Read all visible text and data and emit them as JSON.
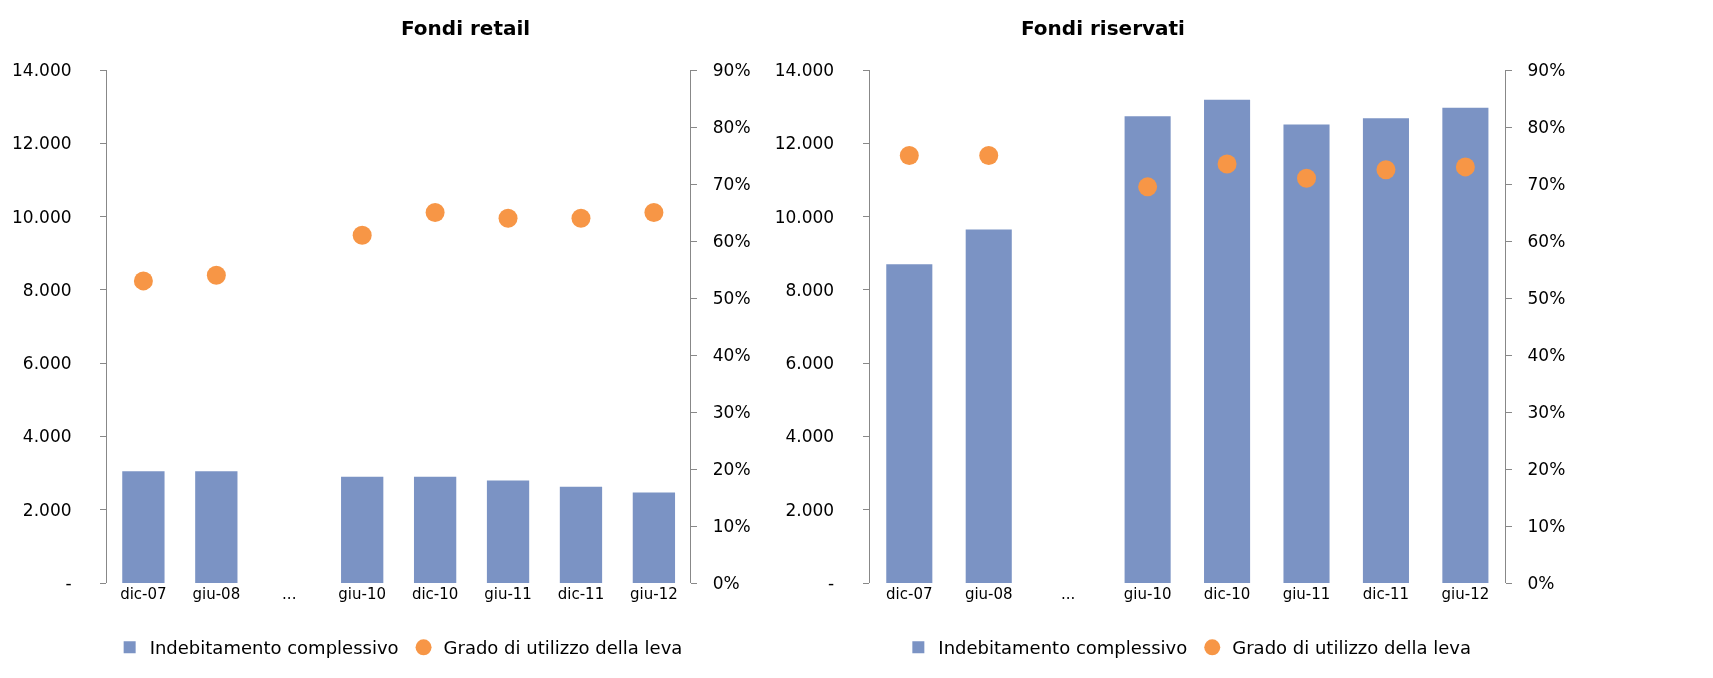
{
  "chart_data": [
    {
      "type": "bar",
      "title": "Fondi retail",
      "categories": [
        "dic-07",
        "giu-08",
        "...",
        "giu-10",
        "dic-10",
        "giu-11",
        "dic-11",
        "giu-12"
      ],
      "series": [
        {
          "name": "Indebitamento complessivo",
          "color": "#7b93c4",
          "values": [
            3050,
            3050,
            null,
            2900,
            2900,
            2800,
            2630,
            2470
          ]
        },
        {
          "name": "Grado di utilizzo della leva",
          "type": "scatter",
          "axis": "y2",
          "color": "#f79646",
          "marker": "circle",
          "values": [
            53,
            54,
            null,
            61,
            65,
            64,
            64,
            65
          ]
        }
      ],
      "ylim": [
        0,
        14000
      ],
      "yticks": [
        {
          "value": 0,
          "label": "-"
        },
        {
          "value": 2000,
          "label": "2.000"
        },
        {
          "value": 4000,
          "label": "4.000"
        },
        {
          "value": 6000,
          "label": "6.000"
        },
        {
          "value": 8000,
          "label": "8.000"
        },
        {
          "value": 10000,
          "label": "10.000"
        },
        {
          "value": 12000,
          "label": "12.000"
        },
        {
          "value": 14000,
          "label": "14.000"
        }
      ],
      "y2lim": [
        0,
        90
      ],
      "y2ticks": [
        {
          "value": 0,
          "label": "0%"
        },
        {
          "value": 10,
          "label": "10%"
        },
        {
          "value": 20,
          "label": "20%"
        },
        {
          "value": 30,
          "label": "30%"
        },
        {
          "value": 40,
          "label": "40%"
        },
        {
          "value": 50,
          "label": "50%"
        },
        {
          "value": 60,
          "label": "60%"
        },
        {
          "value": 70,
          "label": "70%"
        },
        {
          "value": 80,
          "label": "80%"
        },
        {
          "value": 90,
          "label": "90%"
        }
      ],
      "legend": "bottom"
    },
    {
      "type": "bar",
      "title": "Fondi riservati",
      "categories": [
        "dic-07",
        "giu-08",
        "...",
        "giu-10",
        "dic-10",
        "giu-11",
        "dic-11",
        "giu-12"
      ],
      "series": [
        {
          "name": "Indebitamento complessivo",
          "color": "#7b93c4",
          "values": [
            8700,
            9650,
            null,
            12740,
            13190,
            12510,
            12680,
            12970
          ]
        },
        {
          "name": "Grado di utilizzo della leva",
          "type": "scatter",
          "axis": "y2",
          "color": "#f79646",
          "marker": "circle",
          "values": [
            75,
            75,
            null,
            69.5,
            73.5,
            71,
            72.5,
            73
          ]
        }
      ],
      "ylim": [
        0,
        14000
      ],
      "yticks": [
        {
          "value": 0,
          "label": "-"
        },
        {
          "value": 2000,
          "label": "2.000"
        },
        {
          "value": 4000,
          "label": "4.000"
        },
        {
          "value": 6000,
          "label": "6.000"
        },
        {
          "value": 8000,
          "label": "8.000"
        },
        {
          "value": 10000,
          "label": "10.000"
        },
        {
          "value": 12000,
          "label": "12.000"
        },
        {
          "value": 14000,
          "label": "14.000"
        }
      ],
      "y2lim": [
        0,
        90
      ],
      "y2ticks": [
        {
          "value": 0,
          "label": "0%"
        },
        {
          "value": 10,
          "label": "10%"
        },
        {
          "value": 20,
          "label": "20%"
        },
        {
          "value": 30,
          "label": "30%"
        },
        {
          "value": 40,
          "label": "40%"
        },
        {
          "value": 50,
          "label": "50%"
        },
        {
          "value": 60,
          "label": "60%"
        },
        {
          "value": 70,
          "label": "70%"
        },
        {
          "value": 80,
          "label": "80%"
        },
        {
          "value": 90,
          "label": "90%"
        }
      ],
      "legend": "bottom"
    }
  ]
}
